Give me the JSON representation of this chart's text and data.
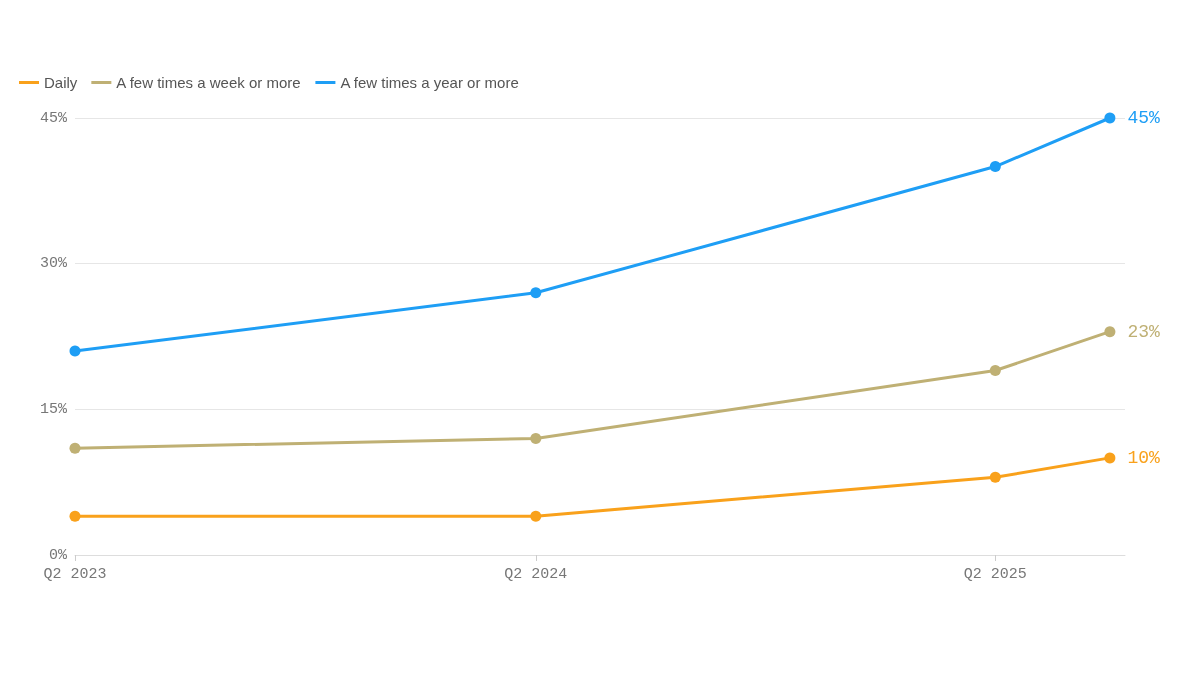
{
  "chart_data": {
    "type": "line",
    "x": [
      "2023-04",
      "2024-04",
      "2025-04",
      "2025-07"
    ],
    "series": [
      {
        "name": "Daily",
        "color": "#f9a11b",
        "values": [
          4,
          4,
          8,
          10
        ],
        "value_labels": [
          null,
          null,
          null,
          "10%"
        ]
      },
      {
        "name": "A few times a week or more",
        "color": "#bfb074",
        "values": [
          11,
          12,
          19,
          23
        ],
        "value_labels": [
          null,
          null,
          null,
          "23%"
        ]
      },
      {
        "name": "A few times a year or more",
        "color": "#1e9ef5",
        "values": [
          21,
          27,
          40,
          45
        ],
        "value_labels": [
          null,
          null,
          null,
          "45%"
        ]
      }
    ],
    "xlim": [
      "2023-04",
      "2025-07-13"
    ],
    "xticks": [
      {
        "value": "2023-04",
        "label": "Q2 2023"
      },
      {
        "value": "2024-04",
        "label": "Q2 2024"
      },
      {
        "value": "2025-04",
        "label": "Q2 2025"
      }
    ],
    "ylim": [
      0,
      45
    ],
    "yticks": [
      {
        "value": 0,
        "label": "0%"
      },
      {
        "value": 15,
        "label": "15%"
      },
      {
        "value": 30,
        "label": "30%"
      },
      {
        "value": 45,
        "label": "45%"
      }
    ],
    "grid": "y",
    "legend": "top left",
    "marker": "circle",
    "line_style": "solid"
  }
}
